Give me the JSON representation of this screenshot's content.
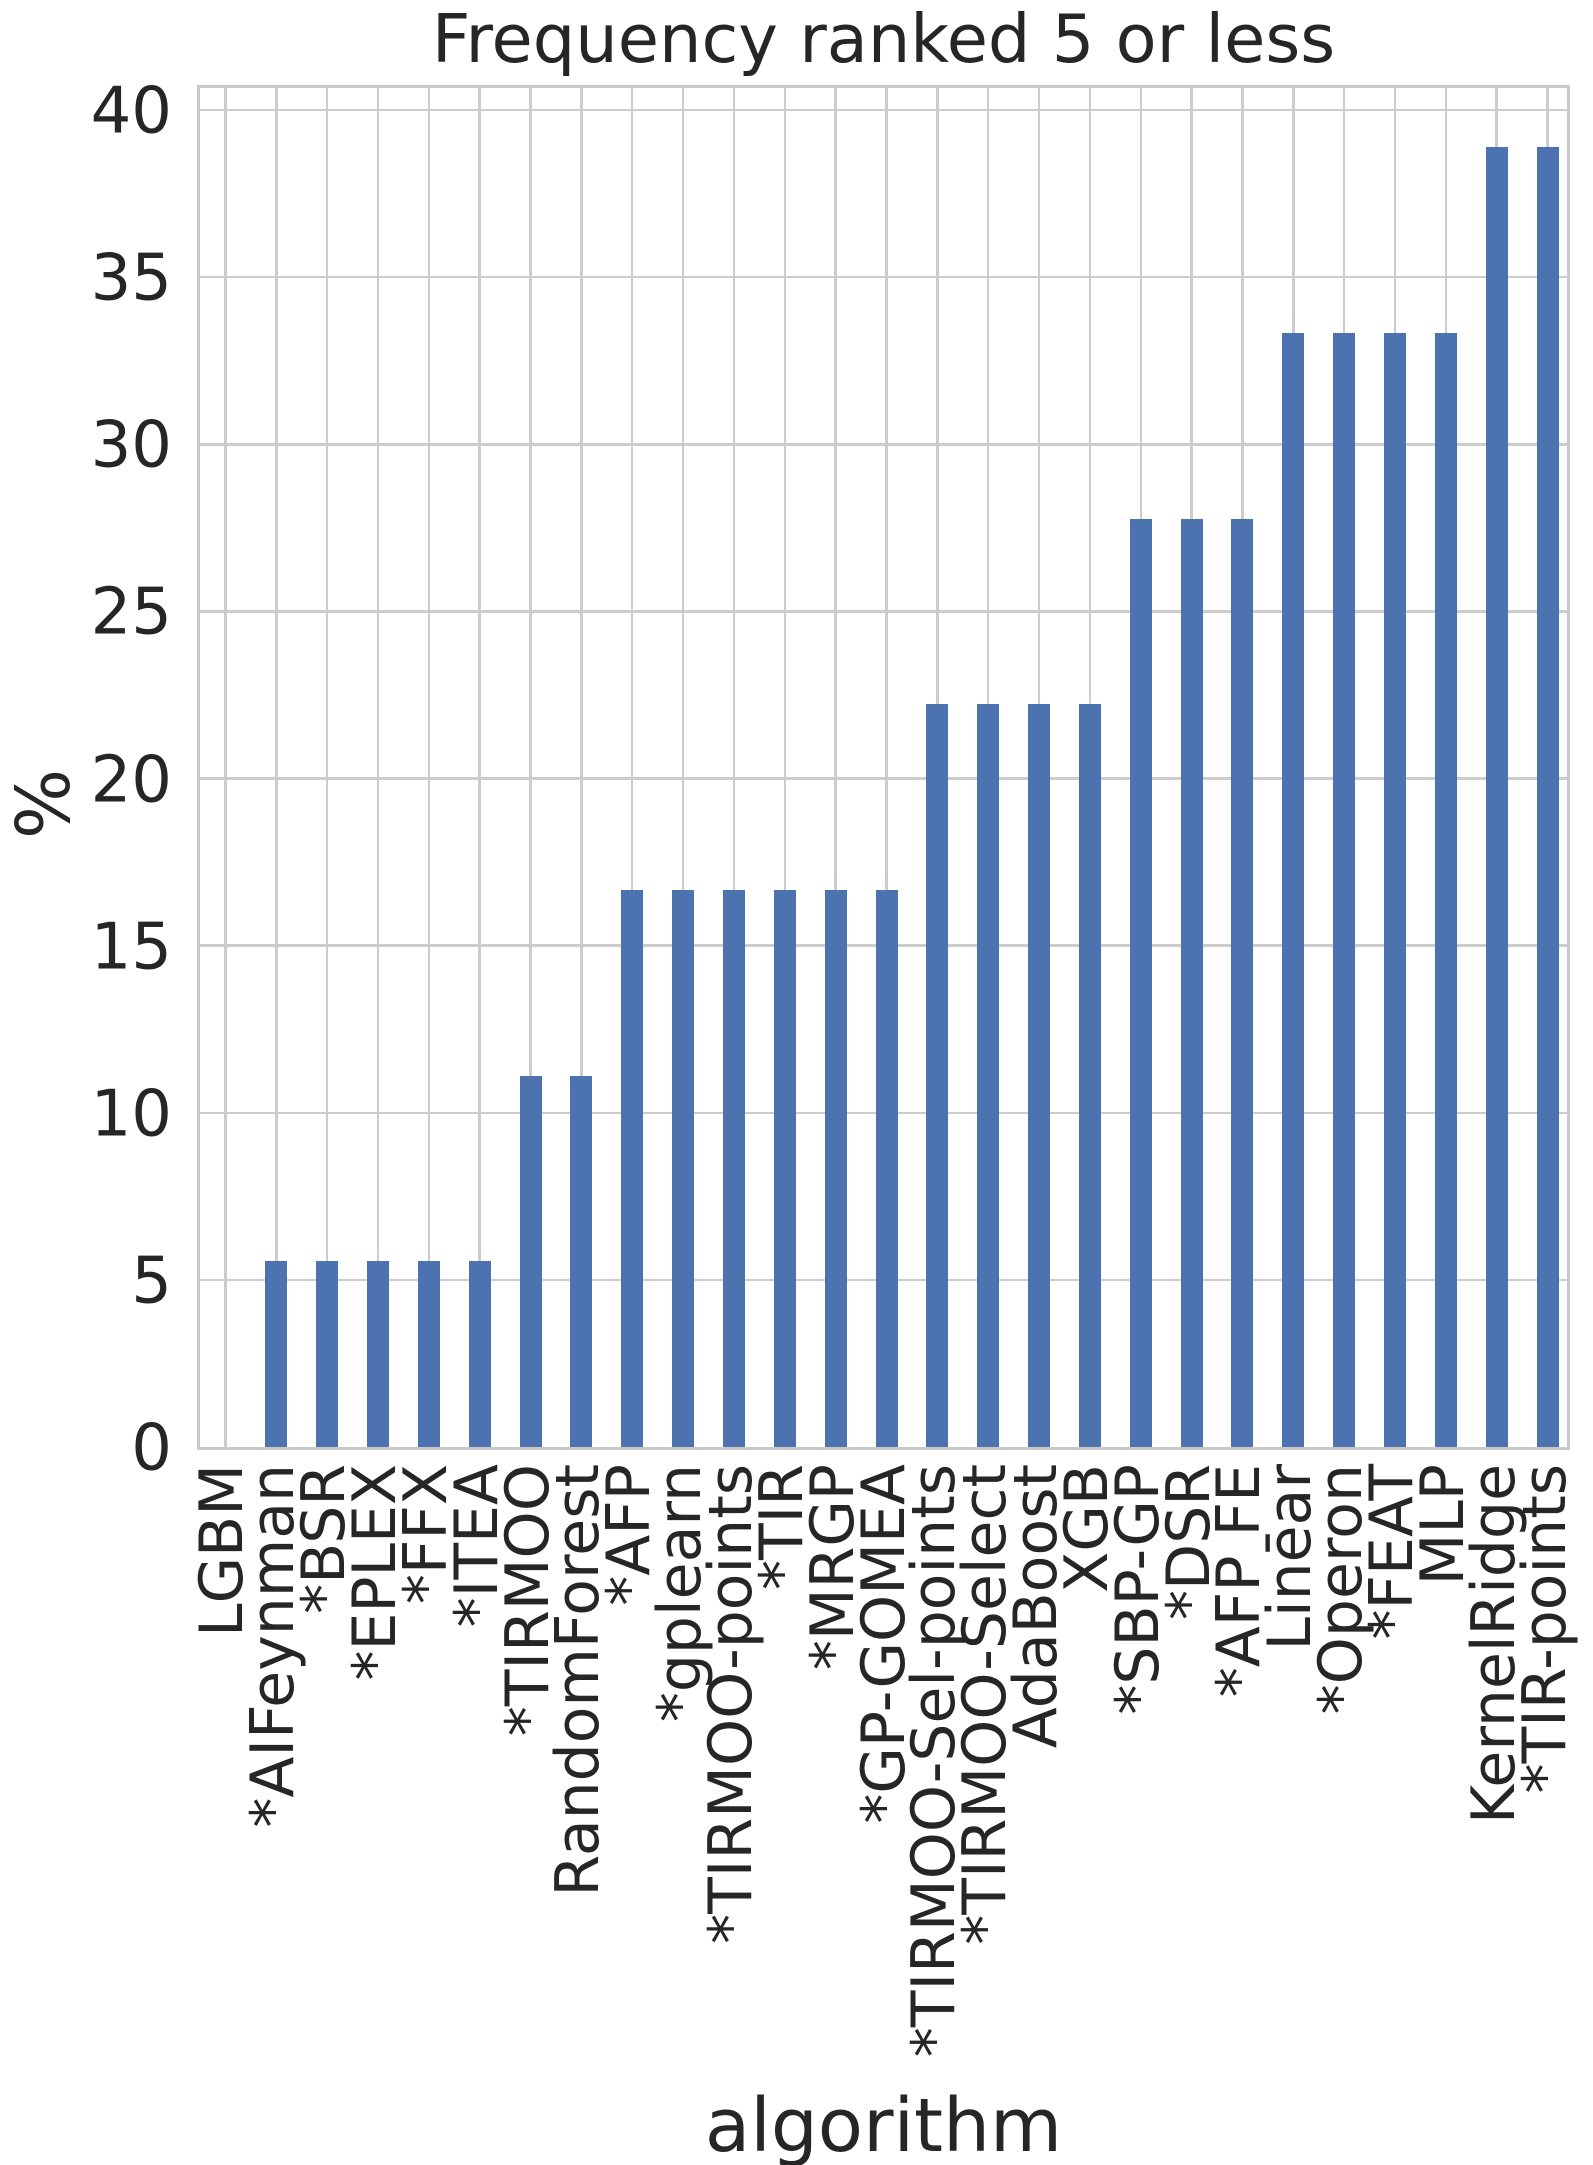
{
  "chart_data": {
    "type": "bar",
    "title": "Frequency ranked 5 or less",
    "xlabel": "algorithm",
    "ylabel": "%",
    "categories": [
      "LGBM",
      "*AIFeynman",
      "*BSR",
      "*EPLEX",
      "*FFX",
      "*ITEA",
      "*TIRMOO",
      "RandomForest",
      "*AFP",
      "*gplearn",
      "*TIRMOO-points",
      "*TIR",
      "*MRGP",
      "*GP-GOMEA",
      "*TIRMOO-Sel-points",
      "*TIRMOO-Select",
      "AdaBoost",
      "XGB",
      "*SBP-GP",
      "*DSR",
      "*AFP FE",
      "Linēar",
      "*Operon",
      "*FEAT",
      "MLP",
      "KernelRidge",
      "*TIR-points"
    ],
    "values": [
      0,
      5.56,
      5.56,
      5.56,
      5.56,
      5.56,
      11.11,
      11.11,
      16.67,
      16.67,
      16.67,
      16.67,
      16.67,
      16.67,
      22.22,
      22.22,
      22.22,
      22.22,
      27.78,
      27.78,
      27.78,
      33.33,
      33.33,
      33.33,
      33.33,
      38.89,
      38.89
    ],
    "yticks": [
      0,
      5,
      10,
      15,
      20,
      25,
      30,
      35,
      40
    ],
    "ylim": [
      0,
      40.84
    ],
    "grid": true,
    "legend": "none",
    "bar_color": "#4c72b0",
    "grid_color": "#cccccc",
    "axis_edge_color": "#c9c9c9",
    "text_color": "#262626"
  }
}
